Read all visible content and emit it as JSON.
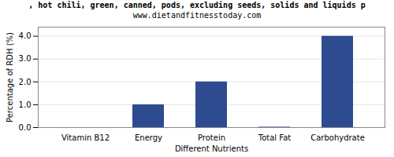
{
  "chart_data": {
    "type": "bar",
    "title": ", hot chili, green, canned, pods, excluding seeds, solids and liquids p",
    "subtitle": "www.dietandfitnesstoday.com",
    "categories": [
      "Vitamin B12",
      "Energy",
      "Protein",
      "Total Fat",
      "Carbohydrate"
    ],
    "values": [
      0.0,
      1.0,
      2.0,
      0.02,
      4.0
    ],
    "color": "#2e4b8f",
    "xlabel": "Different Nutrients",
    "ylabel": "Percentage of RDH (%)",
    "ylim": [
      0,
      4.4
    ],
    "yticks": [
      0,
      1,
      2,
      3,
      4
    ],
    "grid": true
  }
}
